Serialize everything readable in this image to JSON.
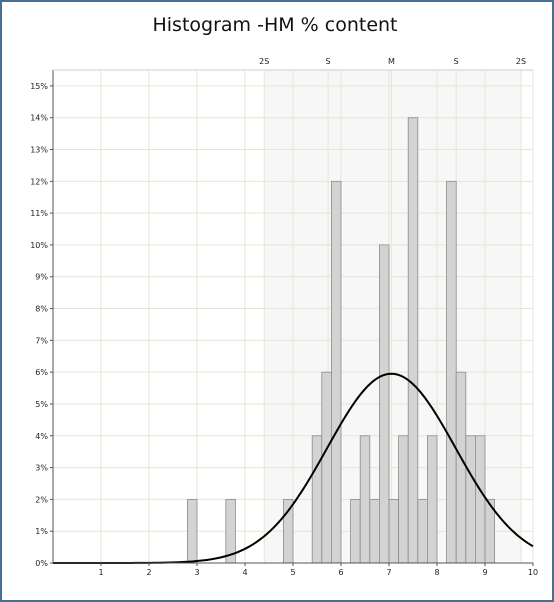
{
  "chart_data": {
    "type": "bar",
    "title": "Histogram -HM % content",
    "xlabel": "",
    "ylabel": "",
    "xlim": [
      0,
      10
    ],
    "ylim": [
      0,
      15.5
    ],
    "grid": true,
    "x_ticks": [
      "1",
      "2",
      "3",
      "4",
      "5",
      "6",
      "7",
      "8",
      "9",
      "10"
    ],
    "y_ticks": [
      "0%",
      "1%",
      "2%",
      "3%",
      "4%",
      "5%",
      "6%",
      "7%",
      "8%",
      "9%",
      "10%",
      "11%",
      "12%",
      "13%",
      "14%",
      "15%"
    ],
    "sigma_labels": [
      {
        "label": "2S",
        "x": 4.4
      },
      {
        "label": "S",
        "x": 5.73
      },
      {
        "label": "M",
        "x": 7.05
      },
      {
        "label": "S",
        "x": 8.4
      },
      {
        "label": "2S",
        "x": 9.75
      }
    ],
    "bin_width": 0.2,
    "bars": [
      {
        "x": 2.9,
        "value": 2
      },
      {
        "x": 3.7,
        "value": 2
      },
      {
        "x": 4.9,
        "value": 2
      },
      {
        "x": 5.5,
        "value": 4
      },
      {
        "x": 5.7,
        "value": 6
      },
      {
        "x": 5.9,
        "value": 12
      },
      {
        "x": 6.3,
        "value": 2
      },
      {
        "x": 6.5,
        "value": 4
      },
      {
        "x": 6.7,
        "value": 2
      },
      {
        "x": 6.9,
        "value": 10
      },
      {
        "x": 7.1,
        "value": 2
      },
      {
        "x": 7.3,
        "value": 4
      },
      {
        "x": 7.5,
        "value": 14
      },
      {
        "x": 7.7,
        "value": 2
      },
      {
        "x": 7.9,
        "value": 4
      },
      {
        "x": 8.3,
        "value": 12
      },
      {
        "x": 8.5,
        "value": 6
      },
      {
        "x": 8.7,
        "value": 4
      },
      {
        "x": 8.9,
        "value": 4
      },
      {
        "x": 9.1,
        "value": 2
      }
    ],
    "normal_curve": {
      "mean": 7.05,
      "sd": 1.34,
      "peak_value": 5.95
    },
    "colors": {
      "bar_fill": "#d3d3d3",
      "bar_stroke": "#8c8c8c",
      "curve": "#000000",
      "grid": "#e6e6d2",
      "frame": "#4a6e93",
      "band": "#f7f7f7"
    }
  }
}
